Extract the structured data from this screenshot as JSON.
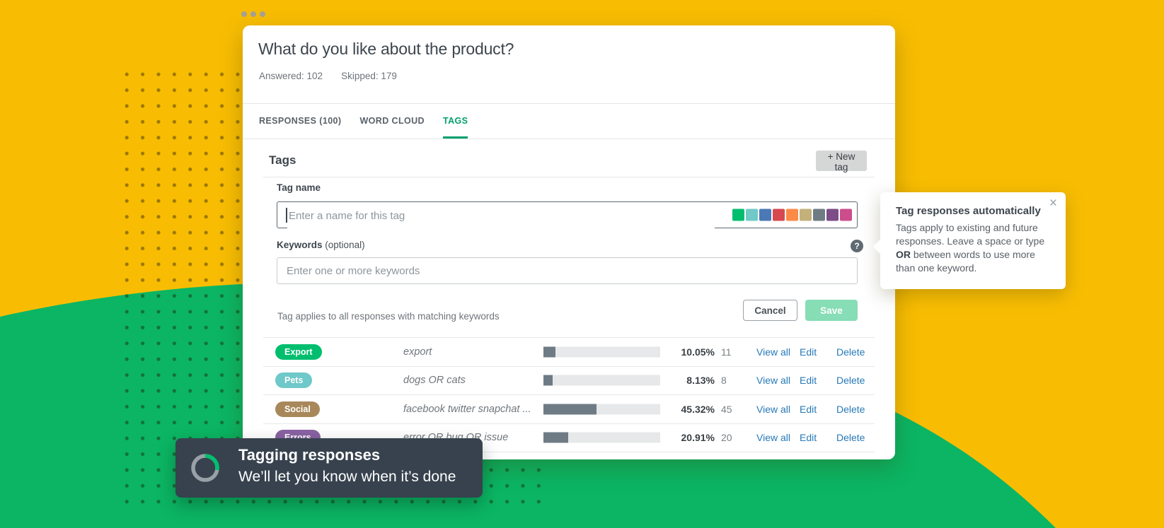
{
  "question": {
    "title": "What do you like about the product?",
    "answered_label": "Answered: 102",
    "skipped_label": "Skipped: 179"
  },
  "tabs": [
    {
      "label": "RESPONSES (100)",
      "active": false
    },
    {
      "label": "WORD CLOUD",
      "active": false
    },
    {
      "label": "TAGS",
      "active": true
    }
  ],
  "tags_section": {
    "heading": "Tags",
    "new_tag_button": "+ New tag"
  },
  "form": {
    "tag_name_label": "Tag name",
    "tag_name_placeholder": "Enter a name for this tag",
    "color_swatches": [
      "#00BE6E",
      "#70C9C7",
      "#4A79B6",
      "#D6494F",
      "#FB8A47",
      "#C3B07B",
      "#6F7C84",
      "#7C4D86",
      "#CC4D8C"
    ],
    "keywords_label": "Keywords",
    "keywords_optional": "(optional)",
    "keywords_placeholder": "Enter one or more keywords",
    "help_icon": "?",
    "helper_text": "Tag applies to all responses with matching keywords",
    "cancel_button": "Cancel",
    "save_button": "Save"
  },
  "tag_rows": [
    {
      "name": "Export",
      "color": "#00BE6E",
      "keywords": "export",
      "percent": "10.05%",
      "percent_value": 10.05,
      "count": "11"
    },
    {
      "name": "Pets",
      "color": "#6FC8C9",
      "keywords": "dogs OR cats",
      "percent": "8.13%",
      "percent_value": 8.13,
      "count": "8"
    },
    {
      "name": "Social",
      "color": "#A8885A",
      "keywords": "facebook twitter snapchat ...",
      "percent": "45.32%",
      "percent_value": 45.32,
      "count": "45"
    },
    {
      "name": "Errors",
      "color": "#8A62A3",
      "keywords": "error OR bug OR issue",
      "percent": "20.91%",
      "percent_value": 20.91,
      "count": "20"
    }
  ],
  "row_actions": {
    "view_all": "View all",
    "edit": "Edit",
    "delete": "Delete"
  },
  "tooltip": {
    "title": "Tag responses automatically",
    "body_before": "Tags apply to existing and future responses. Leave a space or type ",
    "body_bold": "OR",
    "body_after": " between words to use more than one keyword.",
    "close": "×"
  },
  "toast": {
    "title": "Tagging responses",
    "subtitle": "We’ll let you know when it’s done"
  },
  "colors": {
    "background_yellow": "#F8BD03",
    "decoration_green": "#0BB563",
    "accent_green": "#00A16C",
    "link_blue": "#2779B7",
    "bar_fill": "#6F7B84",
    "toast_bg": "#37424E",
    "save_disabled": "#87DDB5"
  }
}
